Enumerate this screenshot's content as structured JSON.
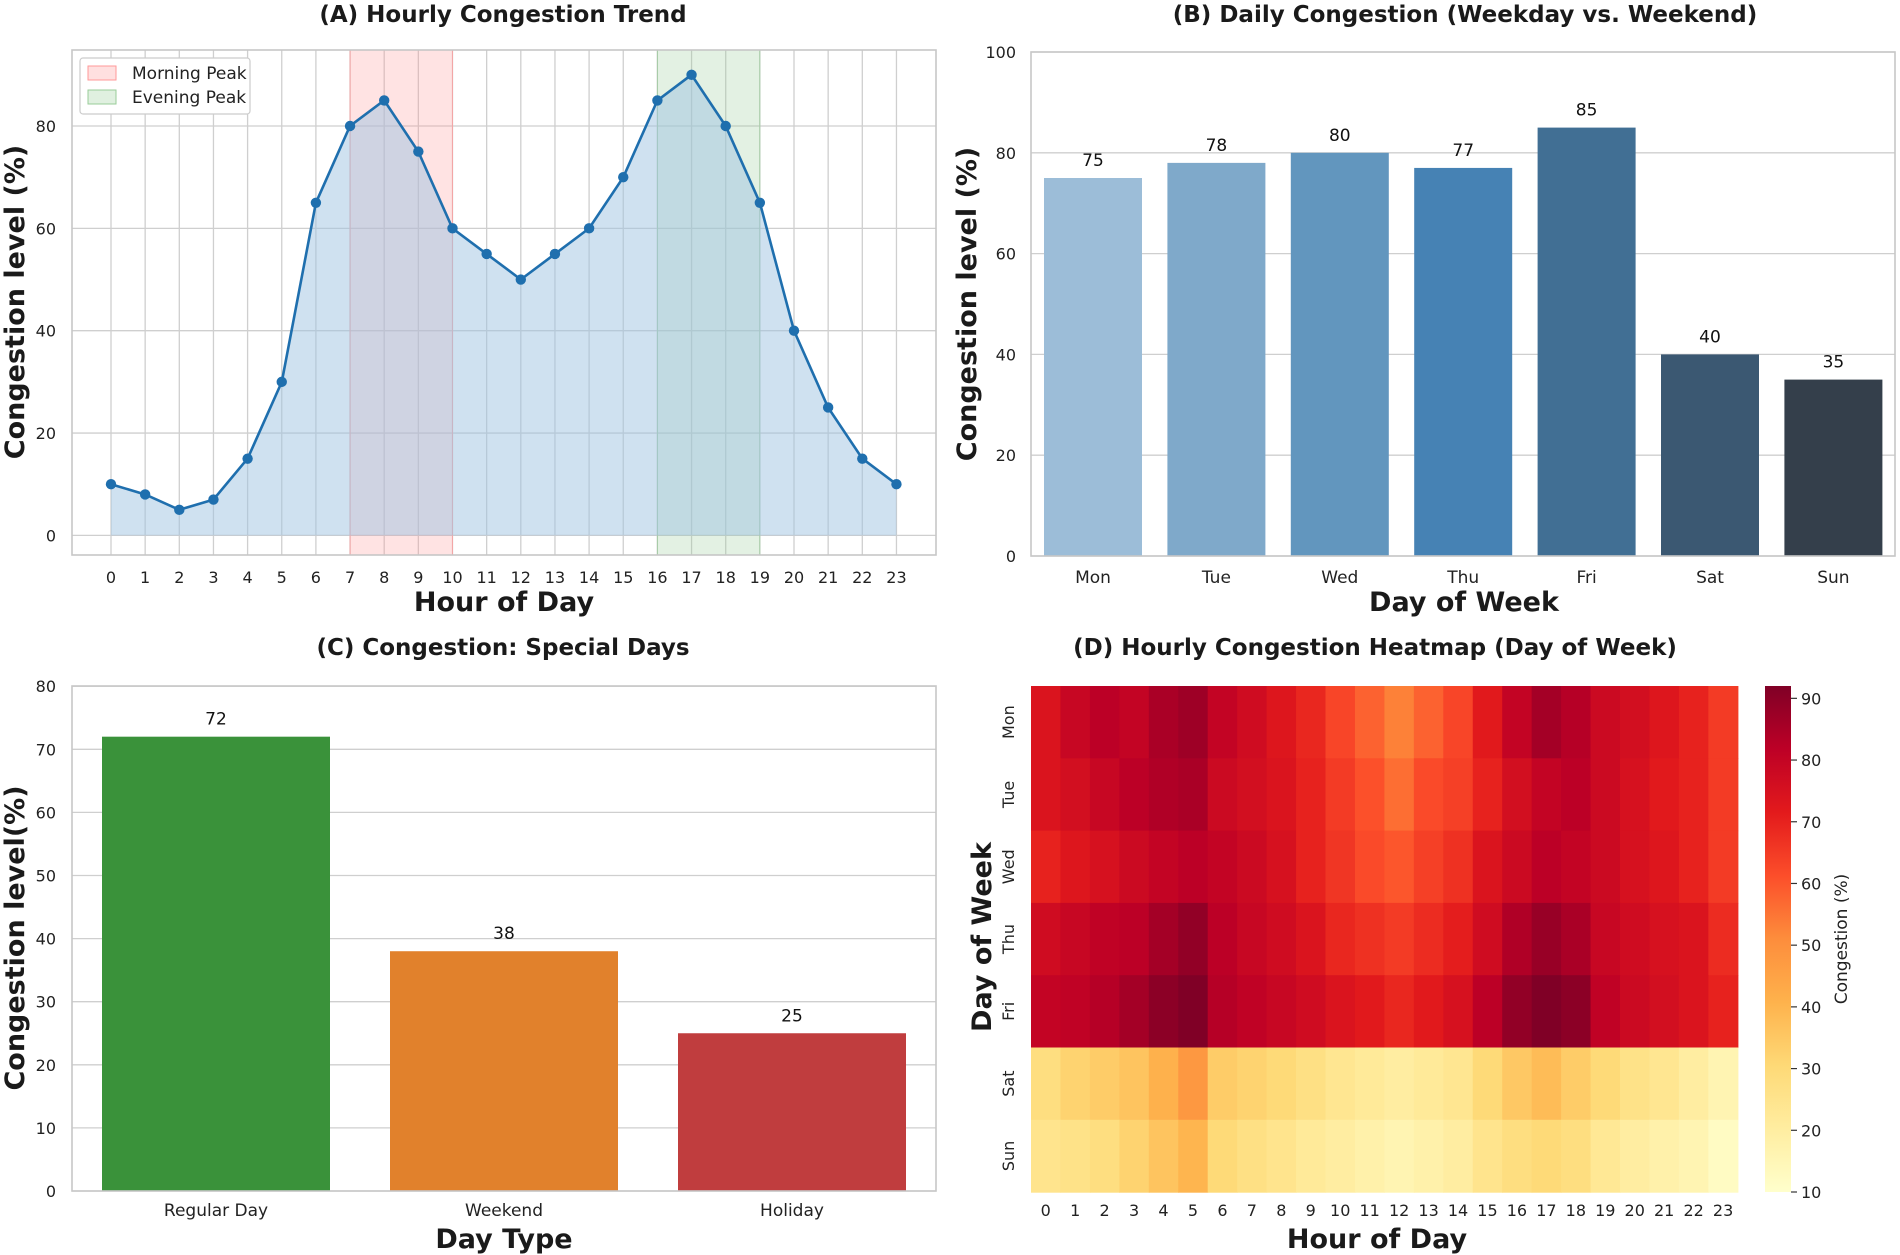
{
  "chart_data": [
    {
      "type": "line",
      "title": "(A) Hourly Congestion Trend",
      "xlabel": "Hour of Day",
      "ylabel": "Congestion level (%)",
      "x": [
        0,
        1,
        2,
        3,
        4,
        5,
        6,
        7,
        8,
        9,
        10,
        11,
        12,
        13,
        14,
        15,
        16,
        17,
        18,
        19,
        20,
        21,
        22,
        23
      ],
      "values": [
        10,
        8,
        5,
        7,
        15,
        30,
        65,
        80,
        85,
        75,
        60,
        55,
        50,
        55,
        60,
        70,
        85,
        90,
        80,
        65,
        40,
        25,
        15,
        10
      ],
      "xlim": [
        -1,
        24
      ],
      "ylim": [
        -4,
        95
      ],
      "yticks": [
        0,
        20,
        40,
        60,
        80
      ],
      "line_color": "#1f6fae",
      "fill_color": "#9fc4e2",
      "shaded_regions": [
        {
          "label": "Morning Peak",
          "start": 7,
          "end": 10,
          "color": "#ff9999"
        },
        {
          "label": "Evening Peak",
          "start": 16,
          "end": 19,
          "color": "#99cc99"
        }
      ],
      "legend_position": "top-left"
    },
    {
      "type": "bar",
      "title": "(B) Daily Congestion (Weekday vs. Weekend)",
      "xlabel": "Day of Week",
      "ylabel": "Congestion level (%)",
      "categories": [
        "Mon",
        "Tue",
        "Wed",
        "Thu",
        "Fri",
        "Sat",
        "Sun"
      ],
      "values": [
        75,
        78,
        80,
        77,
        85,
        40,
        35
      ],
      "labels": [
        "75",
        "78",
        "80",
        "77",
        "85",
        "40",
        "35"
      ],
      "ylim": [
        0,
        100
      ],
      "yticks": [
        0,
        20,
        40,
        60,
        80,
        100
      ],
      "colors": [
        "#9cbdd8",
        "#7fa9ca",
        "#6296be",
        "#4682b4",
        "#416f94",
        "#3b5872",
        "#343f4b"
      ]
    },
    {
      "type": "bar",
      "title": "(C) Congestion: Special Days",
      "xlabel": "Day Type",
      "ylabel": "Congestion level(%)",
      "categories": [
        "Regular Day",
        "Weekend",
        "Holiday"
      ],
      "values": [
        72,
        38,
        25
      ],
      "labels": [
        "72",
        "38",
        "25"
      ],
      "ylim": [
        0,
        80
      ],
      "yticks": [
        0,
        10,
        20,
        30,
        40,
        50,
        60,
        70,
        80
      ],
      "colors": [
        "#3a923a",
        "#e1812c",
        "#c03d3e"
      ]
    },
    {
      "type": "heatmap",
      "title": "(D) Hourly Congestion Heatmap (Day of Week)",
      "xlabel": "Hour of Day",
      "ylabel": "Day of Week",
      "x": [
        0,
        1,
        2,
        3,
        4,
        5,
        6,
        7,
        8,
        9,
        10,
        11,
        12,
        13,
        14,
        15,
        16,
        17,
        18,
        19,
        20,
        21,
        22,
        23
      ],
      "y": [
        "Mon",
        "Tue",
        "Wed",
        "Thu",
        "Fri",
        "Sat",
        "Sun"
      ],
      "values": [
        [
          74,
          79,
          82,
          80,
          85,
          87,
          80,
          77,
          73,
          69,
          63,
          58,
          53,
          58,
          63,
          72,
          80,
          86,
          83,
          78,
          76,
          73,
          70,
          65
        ],
        [
          74,
          76,
          79,
          82,
          84,
          85,
          78,
          76,
          74,
          70,
          65,
          61,
          56,
          62,
          64,
          70,
          76,
          80,
          82,
          78,
          75,
          72,
          70,
          65
        ],
        [
          70,
          73,
          75,
          78,
          80,
          82,
          80,
          78,
          75,
          70,
          66,
          62,
          60,
          64,
          67,
          74,
          78,
          82,
          80,
          78,
          75,
          73,
          70,
          65
        ],
        [
          77,
          79,
          81,
          82,
          86,
          89,
          82,
          79,
          77,
          74,
          69,
          67,
          65,
          68,
          71,
          77,
          84,
          88,
          85,
          79,
          77,
          75,
          74,
          68
        ],
        [
          80,
          81,
          83,
          86,
          90,
          93,
          83,
          81,
          79,
          77,
          74,
          72,
          69,
          72,
          75,
          82,
          89,
          92,
          90,
          81,
          78,
          76,
          74,
          70
        ],
        [
          28,
          32,
          34,
          36,
          41,
          48,
          34,
          32,
          30,
          27,
          24,
          22,
          20,
          22,
          24,
          30,
          35,
          38,
          34,
          30,
          26,
          24,
          20,
          16
        ],
        [
          25,
          26,
          28,
          32,
          36,
          40,
          30,
          27,
          25,
          22,
          20,
          18,
          16,
          18,
          20,
          25,
          28,
          30,
          28,
          23,
          20,
          18,
          16,
          12
        ]
      ],
      "colorbar_label": "Congestion (%)",
      "colorbar_range": [
        10,
        92
      ],
      "colorbar_ticks": [
        10,
        20,
        30,
        40,
        50,
        60,
        70,
        80,
        90
      ]
    }
  ]
}
